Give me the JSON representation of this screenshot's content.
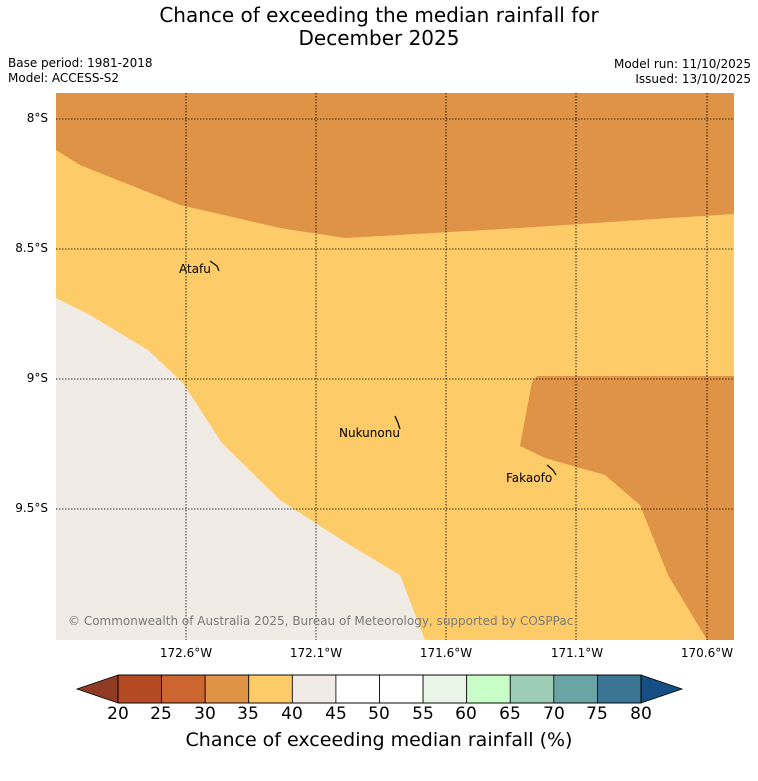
{
  "title_line1": "Chance of exceeding the median rainfall for",
  "title_line2": "December 2025",
  "base_period": "Base period: 1981-2018",
  "model": "Model: ACCESS-S2",
  "model_run": "Model run: 11/10/2025",
  "issued": "Issued: 13/10/2025",
  "lat_labels": [
    "8°S",
    "8.5°S",
    "9°S",
    "9.5°S"
  ],
  "lon_labels": [
    "172.6°W",
    "172.1°W",
    "171.6°W",
    "171.1°W",
    "170.6°W"
  ],
  "places": [
    {
      "name": "Atafu"
    },
    {
      "name": "Nukunonu"
    },
    {
      "name": "Fakaofo"
    }
  ],
  "copyright": "© Commonwealth of Australia 2025, Bureau of Meteorology, supported by COSPPac",
  "colorbar": {
    "ticks": [
      "20",
      "25",
      "30",
      "35",
      "40",
      "45",
      "50",
      "55",
      "60",
      "65",
      "70",
      "75",
      "80"
    ],
    "colors": [
      "#b34a24",
      "#cd6530",
      "#df9347",
      "#fdcb68",
      "#f0ebe5",
      "#ffffff",
      "#ffffff",
      "#e9f5e6",
      "#c8fdc8",
      "#9dcdb5",
      "#6aa4a5",
      "#3a7594"
    ],
    "under_color": "#8f3a22",
    "over_color": "#164f83",
    "label": "Chance of exceeding median rainfall (%)"
  },
  "legend_colors": {
    "c30_35": "#df9347",
    "c35_40": "#fdcb68",
    "c40_45": "#f0ebe5"
  }
}
